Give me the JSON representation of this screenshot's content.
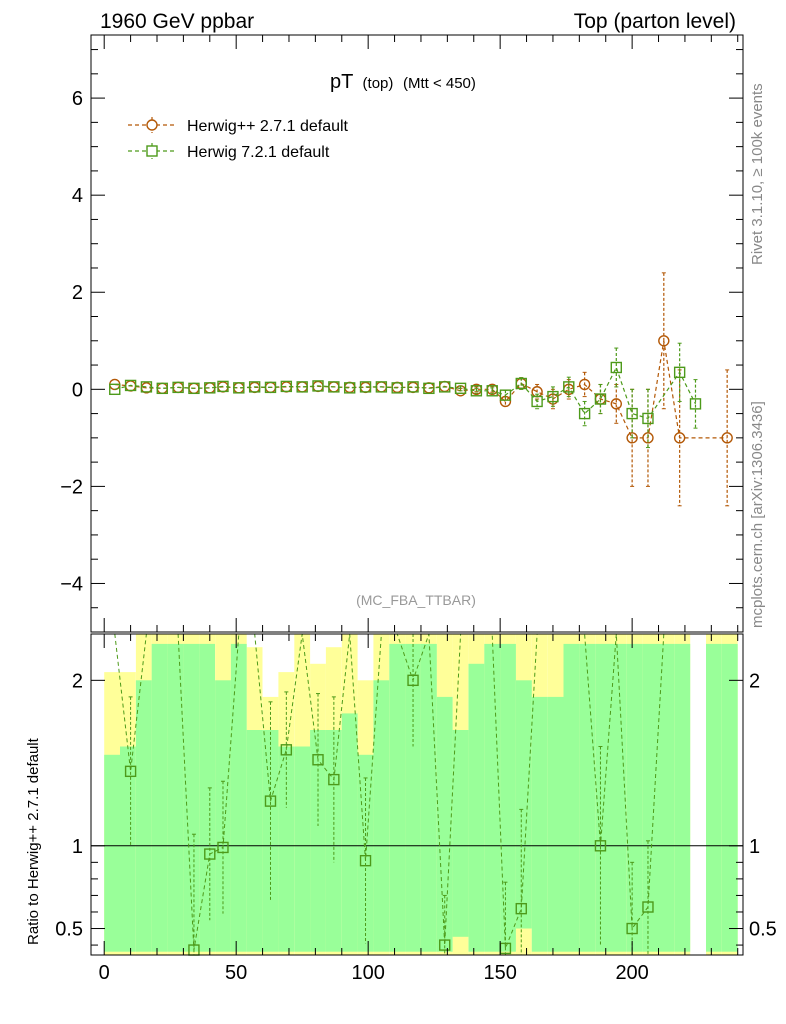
{
  "header": {
    "left": "1960 GeV ppbar",
    "right": "Top (parton level)"
  },
  "title": {
    "main": "pT",
    "sub1": "(top)",
    "sub2": "(Mtt < 450)"
  },
  "side_labels": {
    "rivet": "Rivet 3.1.10, ≥ 100k events",
    "mcplots": "mcplots.cern.ch [arXiv:1306.3436]"
  },
  "watermark": "(MC_FBA_TTBAR)",
  "colors": {
    "herwigpp": "#b35806",
    "herwig7": "#4d9a1a",
    "band_green": "#99ff99",
    "band_yellow": "#ffff99"
  },
  "chart_data": [
    {
      "type": "line",
      "panel": "main",
      "xlim": [
        -5,
        242
      ],
      "ylim": [
        -5,
        7.3
      ],
      "yticks": [
        -4,
        -2,
        0,
        2,
        4,
        6
      ],
      "ytick_labels": [
        "−4",
        "−2",
        "0",
        "2",
        "4",
        "6"
      ],
      "legend": {
        "position": "top-left"
      },
      "series": [
        {
          "name": "Herwig++ 2.7.1 default",
          "marker": "circle",
          "points": [
            [
              4,
              0.1,
              0.03
            ],
            [
              10,
              0.07,
              0.03
            ],
            [
              16,
              0.03,
              0.03
            ],
            [
              22,
              0.02,
              0.03
            ],
            [
              28,
              0.04,
              0.03
            ],
            [
              34,
              0.02,
              0.03
            ],
            [
              40,
              0.03,
              0.03
            ],
            [
              45,
              0.05,
              0.03
            ],
            [
              51,
              0.03,
              0.03
            ],
            [
              57,
              0.04,
              0.03
            ],
            [
              63,
              0.04,
              0.03
            ],
            [
              69,
              0.05,
              0.03
            ],
            [
              75,
              0.05,
              0.03
            ],
            [
              81,
              0.06,
              0.03
            ],
            [
              87,
              0.05,
              0.03
            ],
            [
              93,
              0.04,
              0.03
            ],
            [
              99,
              0.04,
              0.03
            ],
            [
              105,
              0.05,
              0.03
            ],
            [
              111,
              0.04,
              0.03
            ],
            [
              117,
              0.04,
              0.03
            ],
            [
              123,
              0.03,
              0.03
            ],
            [
              129,
              0.06,
              0.04
            ],
            [
              135,
              -0.03,
              0.05
            ],
            [
              141,
              0.0,
              0.05
            ],
            [
              147,
              0.0,
              0.06
            ],
            [
              152,
              -0.25,
              0.1
            ],
            [
              158,
              0.12,
              0.12
            ],
            [
              164,
              -0.05,
              0.15
            ],
            [
              170,
              -0.2,
              0.2
            ],
            [
              176,
              0.0,
              0.2
            ],
            [
              182,
              0.1,
              0.25
            ],
            [
              188,
              -0.2,
              0.3
            ],
            [
              194,
              -0.3,
              0.4
            ],
            [
              200,
              -1.0,
              1.0
            ],
            [
              206,
              -1.0,
              1.0
            ],
            [
              212,
              1.0,
              1.4
            ],
            [
              218,
              -1.0,
              1.4
            ],
            [
              236,
              -1.0,
              1.4
            ]
          ]
        },
        {
          "name": "Herwig 7.2.1 default",
          "marker": "square",
          "points": [
            [
              4,
              0.0,
              0.03
            ],
            [
              10,
              0.08,
              0.03
            ],
            [
              16,
              0.05,
              0.03
            ],
            [
              22,
              0.02,
              0.03
            ],
            [
              28,
              0.04,
              0.03
            ],
            [
              34,
              0.02,
              0.03
            ],
            [
              40,
              0.03,
              0.03
            ],
            [
              45,
              0.06,
              0.03
            ],
            [
              51,
              0.03,
              0.03
            ],
            [
              57,
              0.05,
              0.03
            ],
            [
              63,
              0.04,
              0.03
            ],
            [
              69,
              0.06,
              0.03
            ],
            [
              75,
              0.05,
              0.03
            ],
            [
              81,
              0.07,
              0.03
            ],
            [
              87,
              0.05,
              0.03
            ],
            [
              93,
              0.03,
              0.03
            ],
            [
              99,
              0.05,
              0.03
            ],
            [
              105,
              0.05,
              0.03
            ],
            [
              111,
              0.03,
              0.03
            ],
            [
              117,
              0.05,
              0.03
            ],
            [
              123,
              0.02,
              0.03
            ],
            [
              129,
              0.05,
              0.04
            ],
            [
              135,
              0.02,
              0.05
            ],
            [
              141,
              -0.03,
              0.05
            ],
            [
              147,
              -0.03,
              0.06
            ],
            [
              152,
              -0.12,
              0.1
            ],
            [
              158,
              0.12,
              0.12
            ],
            [
              164,
              -0.25,
              0.15
            ],
            [
              170,
              -0.15,
              0.2
            ],
            [
              176,
              0.05,
              0.2
            ],
            [
              182,
              -0.5,
              0.25
            ],
            [
              188,
              -0.2,
              0.3
            ],
            [
              194,
              0.45,
              0.4
            ],
            [
              200,
              -0.5,
              0.5
            ],
            [
              206,
              -0.6,
              0.6
            ],
            [
              218,
              0.35,
              0.6
            ],
            [
              224,
              -0.3,
              0.5
            ]
          ]
        }
      ]
    },
    {
      "type": "line",
      "panel": "ratio",
      "ylabel": "Ratio to Herwig++ 2.7.1 default",
      "xlim": [
        -5,
        242
      ],
      "ylim": [
        0.34,
        2.28
      ],
      "yticks": [
        0.5,
        1,
        2
      ],
      "ytick_labels": [
        "0.5",
        "1",
        "2"
      ],
      "xticks": [
        0,
        50,
        100,
        150,
        200
      ],
      "xtick_labels": [
        "0",
        "50",
        "100",
        "150",
        "200"
      ],
      "reference_line": 1,
      "bands": {
        "edges": [
          0,
          6,
          12,
          18,
          24,
          30,
          36,
          42,
          48,
          54,
          60,
          66,
          72,
          78,
          84,
          90,
          96,
          102,
          108,
          114,
          120,
          126,
          132,
          138,
          144,
          150,
          156,
          162,
          168,
          174,
          180,
          186,
          192,
          198,
          204,
          210,
          216,
          222,
          228,
          234,
          240
        ],
        "green": [
          [
            0.36,
            1.55
          ],
          [
            0.36,
            1.6
          ],
          [
            0.36,
            2.0
          ],
          [
            0.36,
            2.22
          ],
          [
            0.36,
            2.22
          ],
          [
            0.36,
            2.22
          ],
          [
            0.36,
            2.22
          ],
          [
            0.36,
            2.0
          ],
          [
            0.36,
            2.22
          ],
          [
            0.36,
            1.7
          ],
          [
            0.36,
            1.7
          ],
          [
            0.36,
            1.6
          ],
          [
            0.36,
            1.6
          ],
          [
            0.36,
            1.7
          ],
          [
            0.36,
            1.7
          ],
          [
            0.36,
            1.8
          ],
          [
            0.36,
            1.55
          ],
          [
            0.36,
            2.0
          ],
          [
            0.36,
            2.22
          ],
          [
            0.36,
            2.22
          ],
          [
            0.36,
            2.22
          ],
          [
            0.36,
            1.9
          ],
          [
            0.45,
            1.7
          ],
          [
            0.36,
            2.1
          ],
          [
            0.36,
            2.22
          ],
          [
            0.36,
            2.22
          ],
          [
            0.5,
            2.0
          ],
          [
            0.36,
            1.9
          ],
          [
            0.36,
            1.9
          ],
          [
            0.36,
            2.22
          ],
          [
            0.36,
            2.22
          ],
          [
            0.36,
            2.22
          ],
          [
            0.36,
            2.22
          ],
          [
            0.36,
            2.22
          ],
          [
            0.36,
            2.22
          ],
          [
            0.36,
            2.22
          ],
          [
            0.36,
            2.22
          ],
          null,
          [
            0.36,
            2.22
          ],
          [
            0.36,
            2.22
          ]
        ],
        "yellow": [
          [
            0.34,
            2.05
          ],
          [
            0.34,
            2.05
          ],
          [
            0.34,
            2.28
          ],
          [
            0.34,
            2.28
          ],
          [
            0.34,
            2.28
          ],
          [
            0.34,
            2.28
          ],
          [
            0.34,
            2.28
          ],
          [
            0.34,
            2.28
          ],
          [
            0.34,
            2.28
          ],
          [
            0.34,
            2.2
          ],
          [
            0.34,
            1.9
          ],
          [
            0.34,
            2.05
          ],
          [
            0.34,
            2.28
          ],
          [
            0.34,
            2.1
          ],
          [
            0.34,
            2.2
          ],
          [
            0.34,
            2.28
          ],
          [
            0.34,
            2.0
          ],
          [
            0.34,
            2.28
          ],
          [
            0.34,
            2.28
          ],
          [
            0.34,
            2.28
          ],
          [
            0.34,
            2.28
          ],
          [
            0.34,
            2.28
          ],
          [
            0.34,
            2.28
          ],
          [
            0.34,
            2.28
          ],
          [
            0.34,
            2.28
          ],
          [
            0.34,
            2.28
          ],
          [
            0.34,
            2.28
          ],
          [
            0.34,
            2.28
          ],
          [
            0.34,
            2.28
          ],
          [
            0.34,
            2.28
          ],
          [
            0.34,
            2.28
          ],
          [
            0.34,
            2.28
          ],
          [
            0.34,
            2.28
          ],
          [
            0.34,
            2.28
          ],
          [
            0.34,
            2.28
          ],
          [
            0.34,
            2.28
          ],
          [
            0.34,
            2.28
          ],
          null,
          [
            0.34,
            2.28
          ],
          [
            0.34,
            2.28
          ]
        ]
      },
      "series": [
        {
          "name": "Herwig 7.2.1 default",
          "marker": "square",
          "points": [
            [
              4,
              null,
              0
            ],
            [
              10,
              1.45,
              0.45
            ],
            [
              16,
              null,
              0
            ],
            [
              22,
              null,
              0
            ],
            [
              28,
              null,
              0
            ],
            [
              34,
              0.37,
              0.7
            ],
            [
              40,
              0.95,
              0.4
            ],
            [
              45,
              0.99,
              0.4
            ],
            [
              51,
              null,
              0
            ],
            [
              57,
              null,
              0
            ],
            [
              63,
              1.27,
              0.6
            ],
            [
              69,
              1.58,
              0.35
            ],
            [
              75,
              null,
              0
            ],
            [
              81,
              1.52,
              0.4
            ],
            [
              87,
              1.4,
              0.5
            ],
            [
              93,
              null,
              0
            ],
            [
              99,
              0.91,
              0.5
            ],
            [
              105,
              null,
              0
            ],
            [
              111,
              null,
              0
            ],
            [
              117,
              2.0,
              0.4
            ],
            [
              123,
              null,
              0
            ],
            [
              129,
              0.4,
              0.3
            ],
            [
              135,
              null,
              0
            ],
            [
              141,
              null,
              0
            ],
            [
              147,
              null,
              0
            ],
            [
              152,
              0.38,
              0.4
            ],
            [
              158,
              0.62,
              0.6
            ],
            [
              164,
              null,
              0
            ],
            [
              170,
              null,
              0
            ],
            [
              176,
              null,
              0
            ],
            [
              182,
              null,
              0
            ],
            [
              188,
              1.0,
              0.6
            ],
            [
              194,
              null,
              0
            ],
            [
              200,
              0.5,
              0.4
            ],
            [
              206,
              0.63,
              0.4
            ],
            [
              212,
              null,
              0
            ]
          ]
        }
      ]
    }
  ]
}
